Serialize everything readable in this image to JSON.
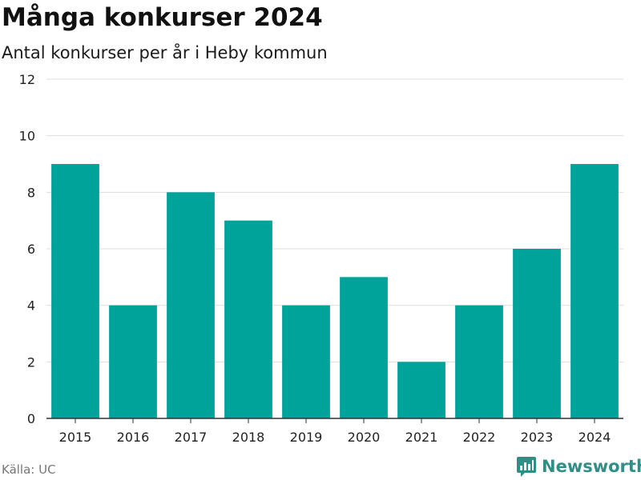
{
  "chart_data": {
    "type": "bar",
    "title": "Många konkurser 2024",
    "subtitle": "Antal konkurser per år i Heby kommun",
    "categories": [
      "2015",
      "2016",
      "2017",
      "2018",
      "2019",
      "2020",
      "2021",
      "2022",
      "2023",
      "2024"
    ],
    "values": [
      9,
      4,
      8,
      7,
      4,
      5,
      2,
      4,
      6,
      9
    ],
    "xlabel": "",
    "ylabel": "",
    "ylim": [
      0,
      12
    ],
    "yticks": [
      0,
      2,
      4,
      6,
      8,
      10,
      12
    ],
    "grid": true,
    "bar_color": "#00a39a",
    "grid_color": "#dddddd",
    "axis_color": "#333333"
  },
  "footer": {
    "source": "Källa: UC",
    "brand": "Newsworthy",
    "brand_color": "#2f8f86",
    "brand_icon": "bar-chart-logo-icon"
  }
}
